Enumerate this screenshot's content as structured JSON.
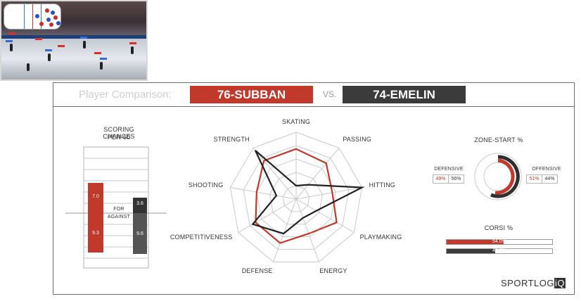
{
  "header": {
    "title": "Player Comparison:",
    "player1": "76-SUBBAN",
    "vs": "VS.",
    "player2": "74-EMELIN"
  },
  "colors": {
    "player1": "#c0392b",
    "player2": "#3b3b3b"
  },
  "scoring": {
    "title": "SCORING CHANCES",
    "subtitle": "PER-60",
    "for_label": "FOR",
    "against_label": "AGAINST",
    "p1_for": "7.0",
    "p1_against": "9.3",
    "p2_for": "3.6",
    "p2_against": "9.6"
  },
  "radar": {
    "axes": [
      "SKATING",
      "PASSING",
      "HITTING",
      "PLAYMAKING",
      "ENERGY",
      "DEFENSE",
      "COMPETITIVENESS",
      "SHOOTING",
      "STRENGTH"
    ],
    "player1": [
      0.75,
      0.7,
      0.55,
      0.7,
      0.55,
      0.7,
      0.7,
      0.6,
      0.75
    ],
    "player2": [
      0.2,
      0.28,
      1.0,
      0.35,
      0.3,
      0.55,
      0.75,
      0.3,
      0.95
    ]
  },
  "zone_start": {
    "title": "ZONE-START %",
    "defensive_label": "DEFENSIVE",
    "offensive_label": "OFFENSIVE",
    "p1_def": "49%",
    "p2_def": "56%",
    "p1_off": "51%",
    "p2_off": "44%"
  },
  "corsi": {
    "title": "CORSI %",
    "p1": "54.0%",
    "p2": "46.2%",
    "p1_value": 0.54,
    "p2_value": 0.462
  },
  "brand": {
    "main": "SPORTLOG",
    "iq": "iQ"
  }
}
